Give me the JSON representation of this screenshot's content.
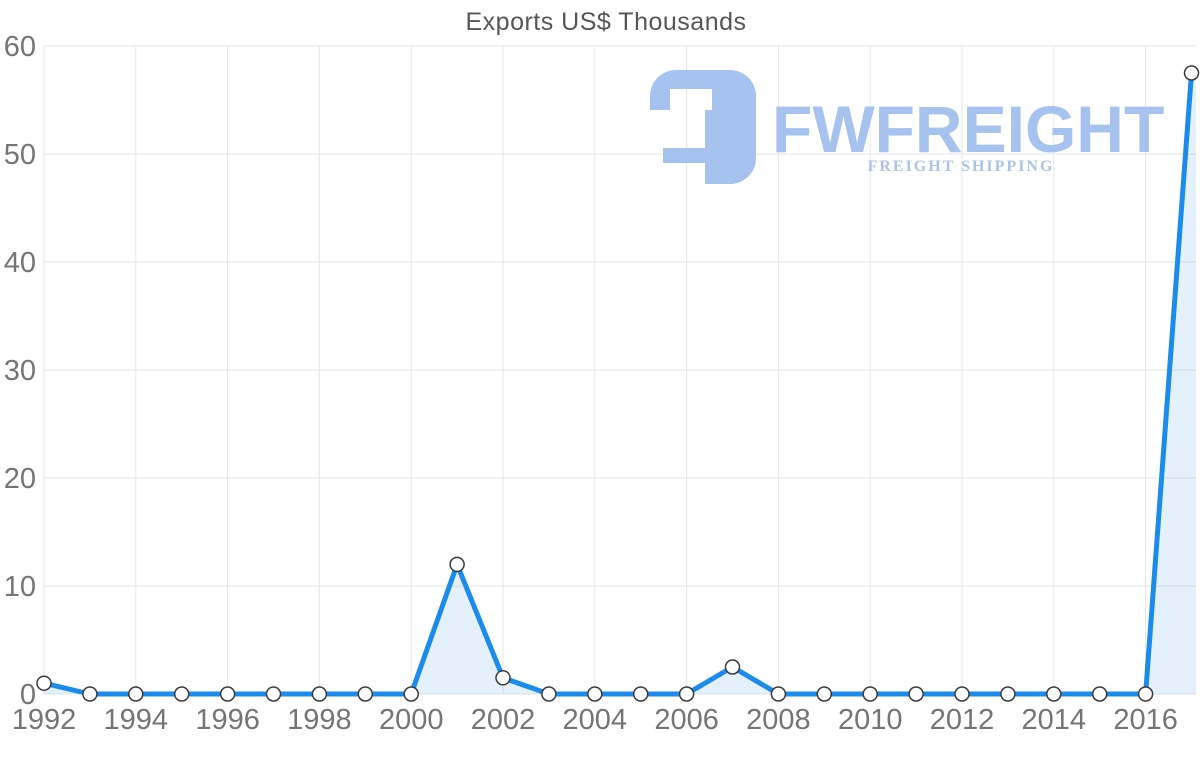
{
  "chart_data": {
    "type": "line",
    "title": "Exports US$ Thousands",
    "xlabel": "",
    "ylabel": "",
    "x": [
      1992,
      1993,
      1994,
      1995,
      1996,
      1997,
      1998,
      1999,
      2000,
      2001,
      2002,
      2003,
      2004,
      2005,
      2006,
      2007,
      2008,
      2009,
      2010,
      2011,
      2012,
      2013,
      2014,
      2015,
      2016,
      2017
    ],
    "series": [
      {
        "name": "Exports US$ Thousands",
        "values": [
          1,
          0,
          0,
          0,
          0,
          0,
          0,
          0,
          0,
          12,
          1.5,
          0,
          0,
          0,
          0,
          2.5,
          0,
          0,
          0,
          0,
          0,
          0,
          0,
          0,
          0,
          57.5
        ]
      }
    ],
    "x_tick_labels": [
      "1992",
      "1994",
      "1996",
      "1998",
      "2000",
      "2002",
      "2004",
      "2006",
      "2008",
      "2010",
      "2012",
      "2014",
      "2016"
    ],
    "y_ticks": [
      0,
      10,
      20,
      30,
      40,
      50,
      60
    ],
    "ylim": [
      0,
      60
    ],
    "xlim": [
      1992,
      2017.1
    ],
    "grid": true,
    "legend_position": "none",
    "colors": {
      "line": "#1b8ceb",
      "fill": "rgba(30, 140, 235, 0.12)",
      "marker_fill": "#ffffff",
      "marker_stroke": "#3a3a3a",
      "grid": "#e6e6e6",
      "tick_label": "#757575",
      "title": "#565656"
    }
  },
  "watermark": {
    "brand": "FWFREIGHT",
    "tagline": "FREIGHT SHIPPING",
    "logo_icon": "fwfreight-logo",
    "brand_color": "#a6c2ee",
    "tagline_color": "#aac4e8"
  }
}
